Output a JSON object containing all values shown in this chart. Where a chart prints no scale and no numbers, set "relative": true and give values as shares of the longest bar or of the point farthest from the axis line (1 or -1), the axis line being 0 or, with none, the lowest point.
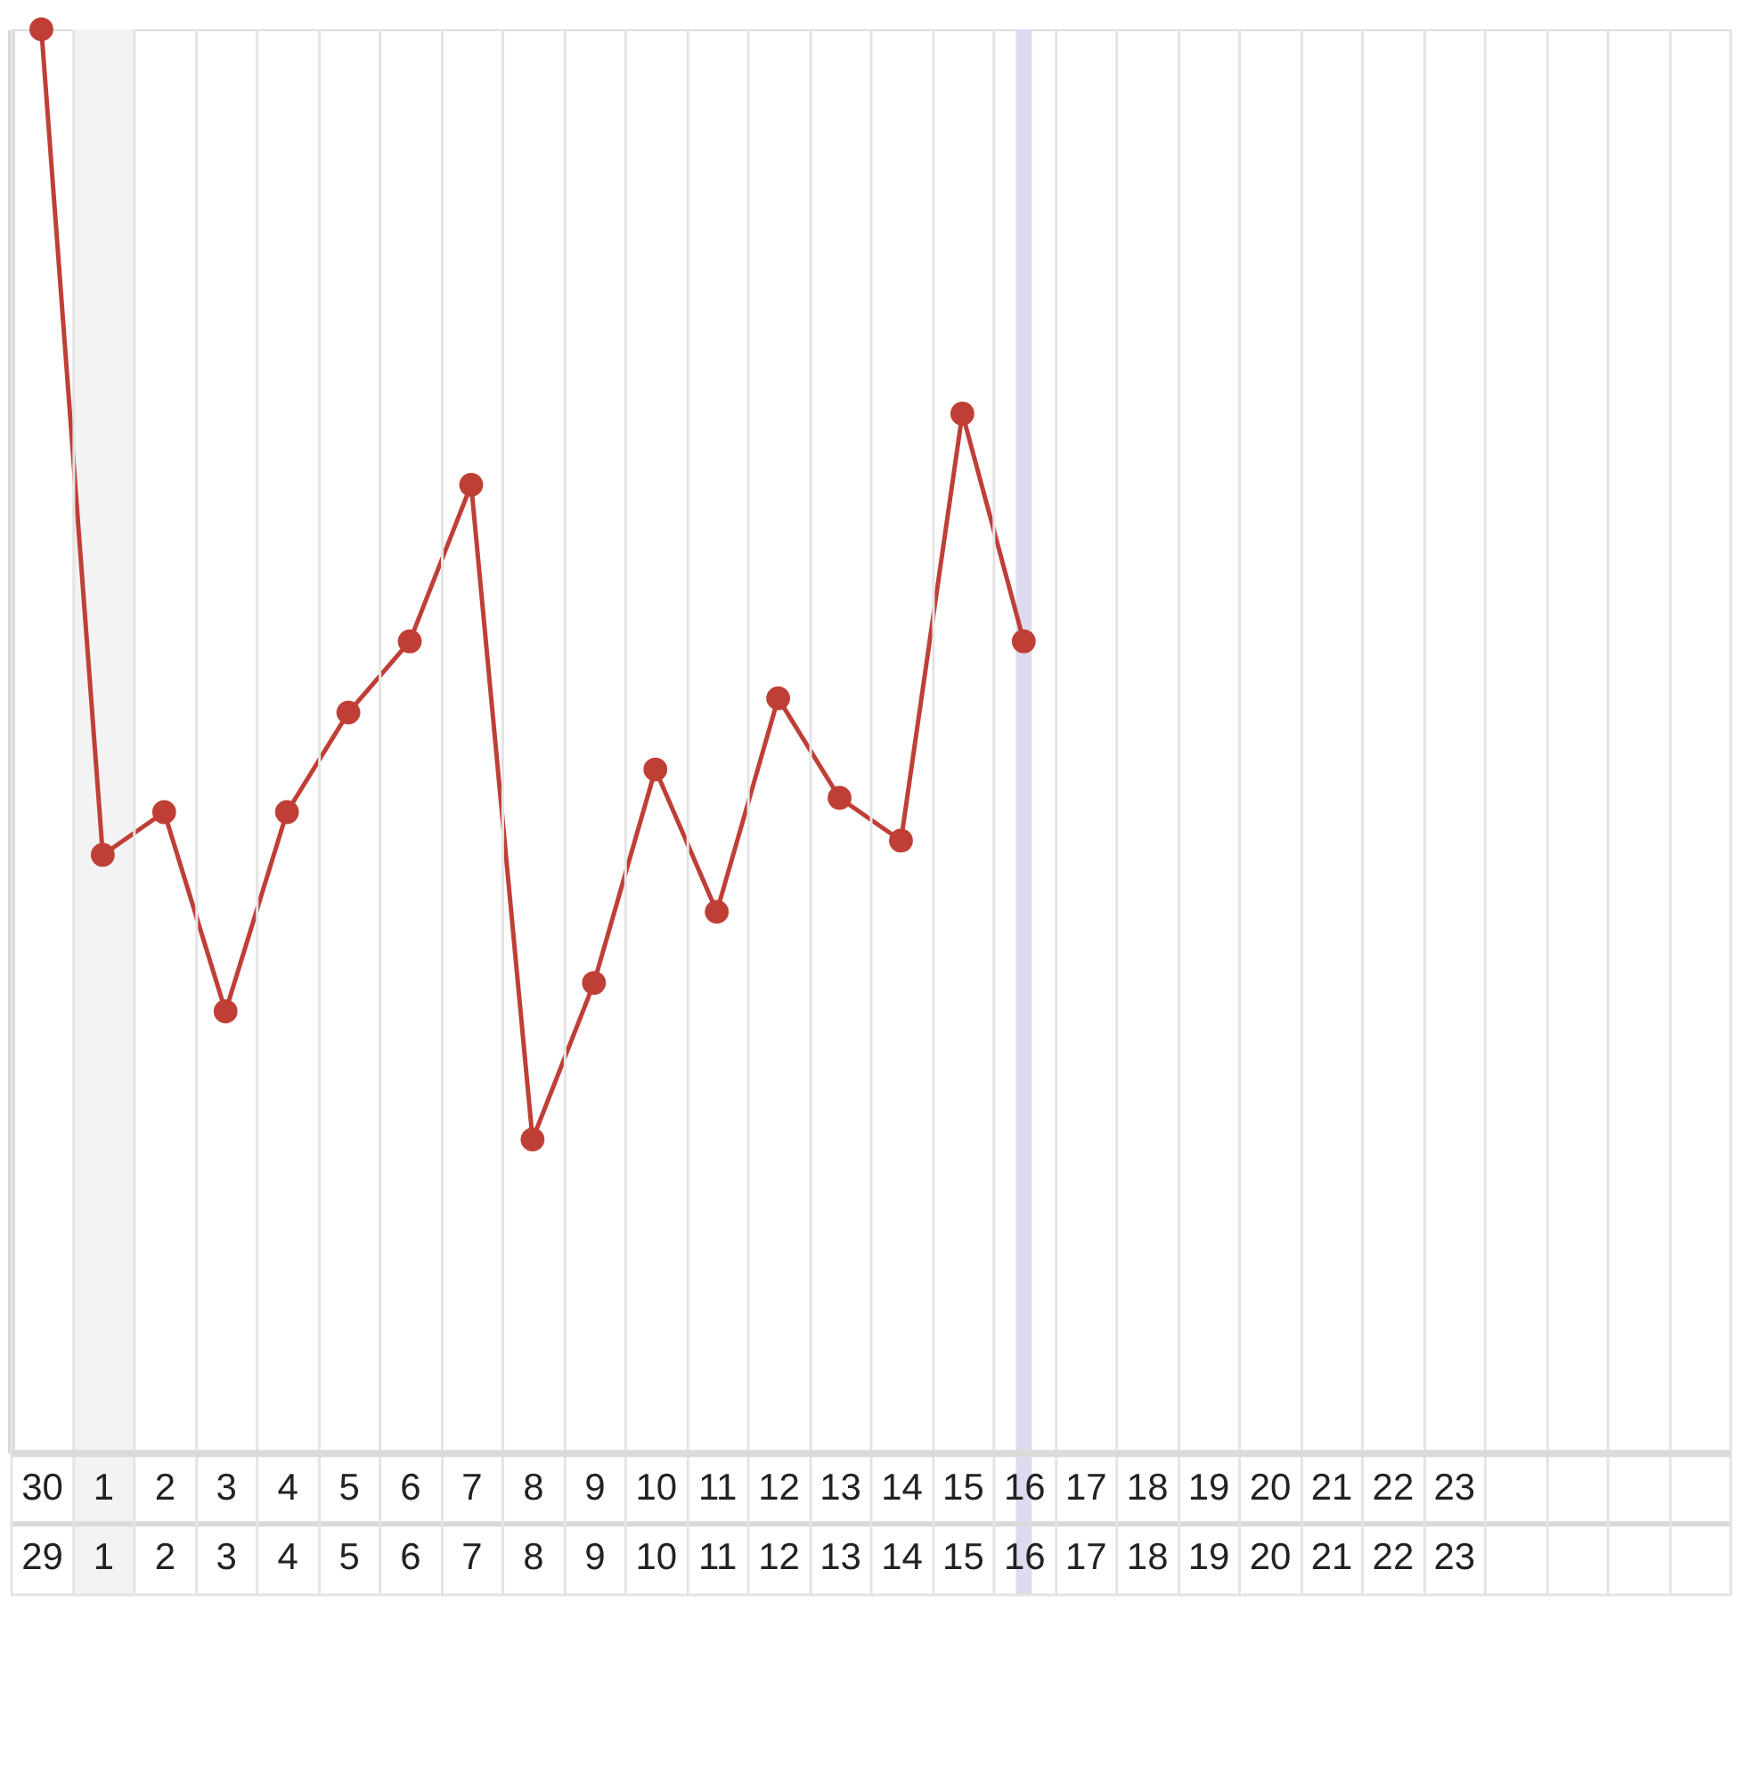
{
  "chart_data": {
    "type": "line",
    "relative": true,
    "categories": [
      "30\n29",
      "1\n1",
      "2\n2",
      "3\n3",
      "4\n4",
      "5\n5",
      "6\n6",
      "7\n7",
      "8\n8",
      "9\n9",
      "10\n10",
      "11\n11",
      "12\n12",
      "13\n13",
      "14\n14",
      "15\n15",
      "16\n16",
      "17\n17",
      "18\n18",
      "19\n19",
      "20\n20",
      "21\n21",
      "22\n22",
      "23\n23",
      null,
      null,
      null,
      null
    ],
    "series": [
      {
        "color": "#bf3f36",
        "values": [
          1.0,
          0.42,
          0.45,
          0.31,
          0.45,
          0.52,
          0.57,
          0.68,
          0.22,
          0.33,
          0.48,
          0.38,
          0.53,
          0.46,
          0.43,
          0.73,
          0.57,
          null,
          null,
          null,
          null,
          null,
          null,
          null,
          null,
          null,
          null,
          null
        ]
      }
    ],
    "marker": "circle",
    "line_style": "solid",
    "grid": "x",
    "bands": [
      {
        "axis": "x",
        "from": "1\n1",
        "to": "1\n1",
        "color": "#f3f3f3"
      }
    ],
    "ref_lines": [
      {
        "axis": "x",
        "value": "16\n16",
        "color": "#dddbef"
      }
    ]
  }
}
